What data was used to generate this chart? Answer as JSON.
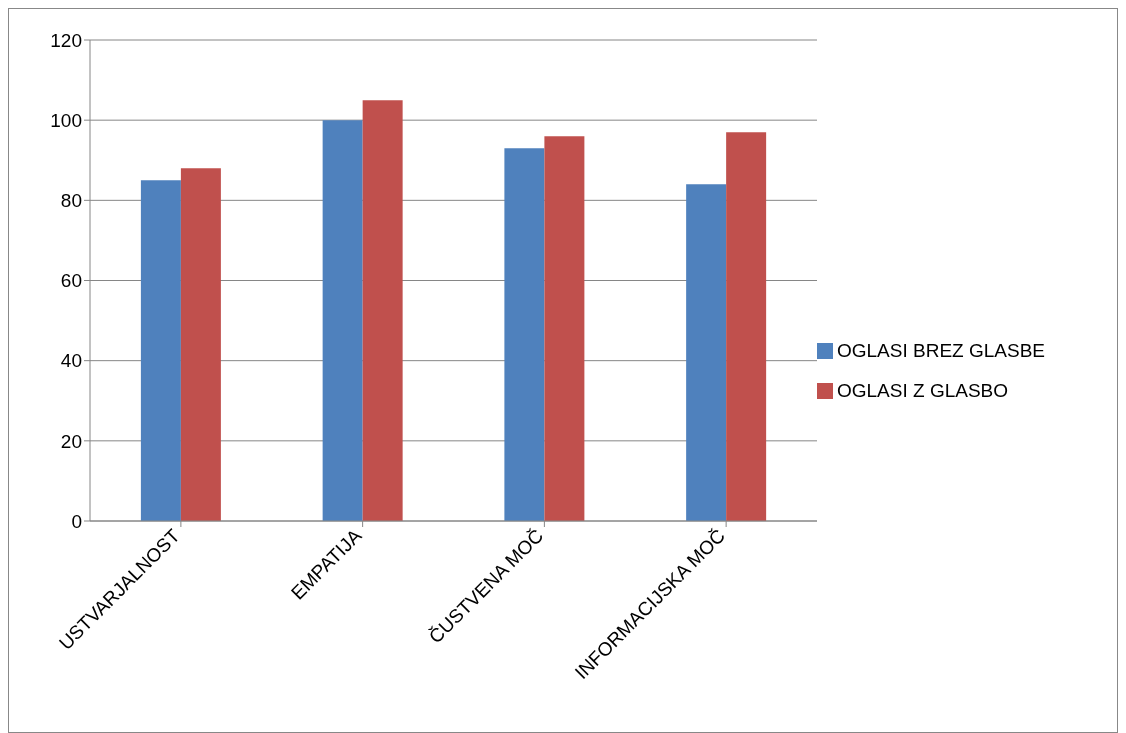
{
  "chart_data": {
    "type": "bar",
    "categories": [
      "USTVARJALNOST",
      "EMPATIJA",
      "ČUSTVENA MOČ",
      "INFORMACIJSKA MOČ"
    ],
    "series": [
      {
        "name": "OGLASI BREZ GLASBE",
        "color": "#4f81bd",
        "values": [
          85,
          100,
          93,
          84
        ]
      },
      {
        "name": "OGLASI Z GLASBO",
        "color": "#c0504d",
        "values": [
          88,
          105,
          96,
          97
        ]
      }
    ],
    "ylim": [
      0,
      120
    ],
    "yticks": [
      0,
      20,
      40,
      60,
      80,
      100,
      120
    ],
    "grid": "y",
    "legend": "right"
  }
}
